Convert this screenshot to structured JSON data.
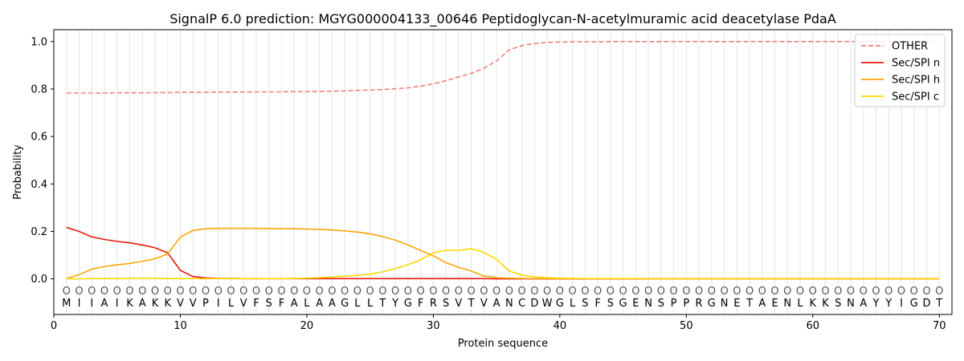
{
  "chart_data": {
    "type": "line",
    "title": "SignalP 6.0 prediction: MGYG000004133_00646 Peptidoglycan-N-acetylmuramic acid deacetylase PdaA",
    "xlabel": "Protein sequence",
    "ylabel": "Probability",
    "xlim": [
      0,
      71
    ],
    "ylim": [
      -0.15,
      1.05
    ],
    "xticks": [
      0,
      10,
      20,
      30,
      40,
      50,
      60,
      70
    ],
    "yticks": [
      0.0,
      0.2,
      0.4,
      0.6,
      0.8,
      1.0
    ],
    "ytick_labels": [
      "0.0",
      "0.2",
      "0.4",
      "0.6",
      "0.8",
      "1.0"
    ],
    "grid": "vertical lines at each residue",
    "legend_position": "top-right",
    "sequence": [
      "M",
      "I",
      "I",
      "A",
      "I",
      "K",
      "A",
      "K",
      "K",
      "V",
      "V",
      "P",
      "I",
      "L",
      "V",
      "F",
      "S",
      "F",
      "A",
      "L",
      "A",
      "A",
      "G",
      "L",
      "L",
      "T",
      "Y",
      "G",
      "F",
      "R",
      "S",
      "V",
      "T",
      "V",
      "A",
      "N",
      "C",
      "D",
      "W",
      "G",
      "L",
      "S",
      "F",
      "S",
      "G",
      "E",
      "N",
      "S",
      "P",
      "P",
      "R",
      "G",
      "N",
      "E",
      "T",
      "A",
      "E",
      "N",
      "L",
      "K",
      "K",
      "S",
      "N",
      "A",
      "Y",
      "Y",
      "I",
      "G",
      "D",
      "T"
    ],
    "region_labels": [
      "O",
      "O",
      "O",
      "O",
      "O",
      "O",
      "O",
      "O",
      "O",
      "O",
      "O",
      "O",
      "O",
      "O",
      "O",
      "O",
      "O",
      "O",
      "O",
      "O",
      "O",
      "O",
      "O",
      "O",
      "O",
      "O",
      "O",
      "O",
      "O",
      "O",
      "O",
      "O",
      "O",
      "O",
      "O",
      "O",
      "O",
      "O",
      "O",
      "O",
      "O",
      "O",
      "O",
      "O",
      "O",
      "O",
      "O",
      "O",
      "O",
      "O",
      "O",
      "O",
      "O",
      "O",
      "O",
      "O",
      "O",
      "O",
      "O",
      "O",
      "O",
      "O",
      "O",
      "O",
      "O",
      "O",
      "O",
      "O",
      "O",
      "O"
    ],
    "series": [
      {
        "name": "OTHER",
        "color": "#f08080",
        "style": "dashed",
        "values": [
          0.783,
          0.783,
          0.783,
          0.783,
          0.784,
          0.784,
          0.784,
          0.785,
          0.785,
          0.786,
          0.786,
          0.786,
          0.787,
          0.787,
          0.787,
          0.788,
          0.788,
          0.788,
          0.789,
          0.789,
          0.79,
          0.791,
          0.792,
          0.794,
          0.796,
          0.798,
          0.801,
          0.805,
          0.812,
          0.822,
          0.835,
          0.851,
          0.866,
          0.888,
          0.918,
          0.965,
          0.983,
          0.992,
          0.996,
          0.998,
          0.999,
          0.999,
          0.999,
          1.0,
          1.0,
          1.0,
          1.0,
          1.0,
          1.0,
          1.0,
          1.0,
          1.0,
          1.0,
          1.0,
          1.0,
          1.0,
          1.0,
          1.0,
          1.0,
          1.0,
          1.0,
          1.0,
          1.0,
          1.0,
          1.0,
          1.0,
          1.0,
          1.0,
          1.0,
          1.0
        ]
      },
      {
        "name": "Sec/SPI n",
        "color": "#e8180c",
        "style": "solid",
        "values": [
          0.217,
          0.2,
          0.177,
          0.166,
          0.158,
          0.152,
          0.143,
          0.131,
          0.11,
          0.036,
          0.01,
          0.004,
          0.002,
          0.002,
          0.001,
          0.001,
          0.001,
          0.001,
          0.001,
          0.001,
          0.001,
          0.001,
          0.001,
          0.001,
          0.001,
          0.001,
          0.001,
          0.001,
          0.001,
          0.001,
          0.001,
          0.001,
          0.001,
          0.001,
          0.0,
          0.0,
          0.0,
          0.0,
          0.0,
          0.0,
          0.0,
          0.0,
          0.0,
          0.0,
          0.0,
          0.0,
          0.0,
          0.0,
          0.0,
          0.0,
          0.0,
          0.0,
          0.0,
          0.0,
          0.0,
          0.0,
          0.0,
          0.0,
          0.0,
          0.0,
          0.0,
          0.0,
          0.0,
          0.0,
          0.0,
          0.0,
          0.0,
          0.0,
          0.0,
          0.0
        ]
      },
      {
        "name": "Sec/SPI h",
        "color": "#ffa500",
        "style": "solid",
        "values": [
          0.001,
          0.018,
          0.041,
          0.052,
          0.059,
          0.065,
          0.074,
          0.085,
          0.105,
          0.176,
          0.204,
          0.211,
          0.213,
          0.213,
          0.213,
          0.213,
          0.212,
          0.212,
          0.211,
          0.21,
          0.208,
          0.206,
          0.202,
          0.197,
          0.19,
          0.178,
          0.163,
          0.143,
          0.12,
          0.097,
          0.068,
          0.049,
          0.033,
          0.012,
          0.005,
          0.003,
          0.002,
          0.001,
          0.001,
          0.001,
          0.001,
          0.001,
          0.001,
          0.001,
          0.001,
          0.001,
          0.001,
          0.001,
          0.001,
          0.001,
          0.001,
          0.001,
          0.001,
          0.001,
          0.001,
          0.001,
          0.001,
          0.001,
          0.001,
          0.001,
          0.001,
          0.001,
          0.001,
          0.001,
          0.001,
          0.001,
          0.001,
          0.001,
          0.001,
          0.001
        ]
      },
      {
        "name": "Sec/SPI c",
        "color": "#ffd700",
        "style": "solid",
        "values": [
          0.0,
          0.0,
          0.001,
          0.001,
          0.001,
          0.002,
          0.002,
          0.002,
          0.001,
          0.001,
          0.001,
          0.001,
          0.001,
          0.001,
          0.001,
          0.001,
          0.001,
          0.001,
          0.002,
          0.003,
          0.005,
          0.008,
          0.011,
          0.015,
          0.02,
          0.03,
          0.043,
          0.06,
          0.08,
          0.11,
          0.12,
          0.12,
          0.127,
          0.112,
          0.082,
          0.033,
          0.016,
          0.008,
          0.005,
          0.003,
          0.002,
          0.001,
          0.001,
          0.001,
          0.001,
          0.001,
          0.0,
          0.0,
          0.0,
          0.0,
          0.0,
          0.0,
          0.0,
          0.0,
          0.0,
          0.0,
          0.0,
          0.0,
          0.0,
          0.0,
          0.0,
          0.0,
          0.0,
          0.0,
          0.0,
          0.0,
          0.0,
          0.0,
          0.0,
          0.0
        ]
      }
    ]
  }
}
